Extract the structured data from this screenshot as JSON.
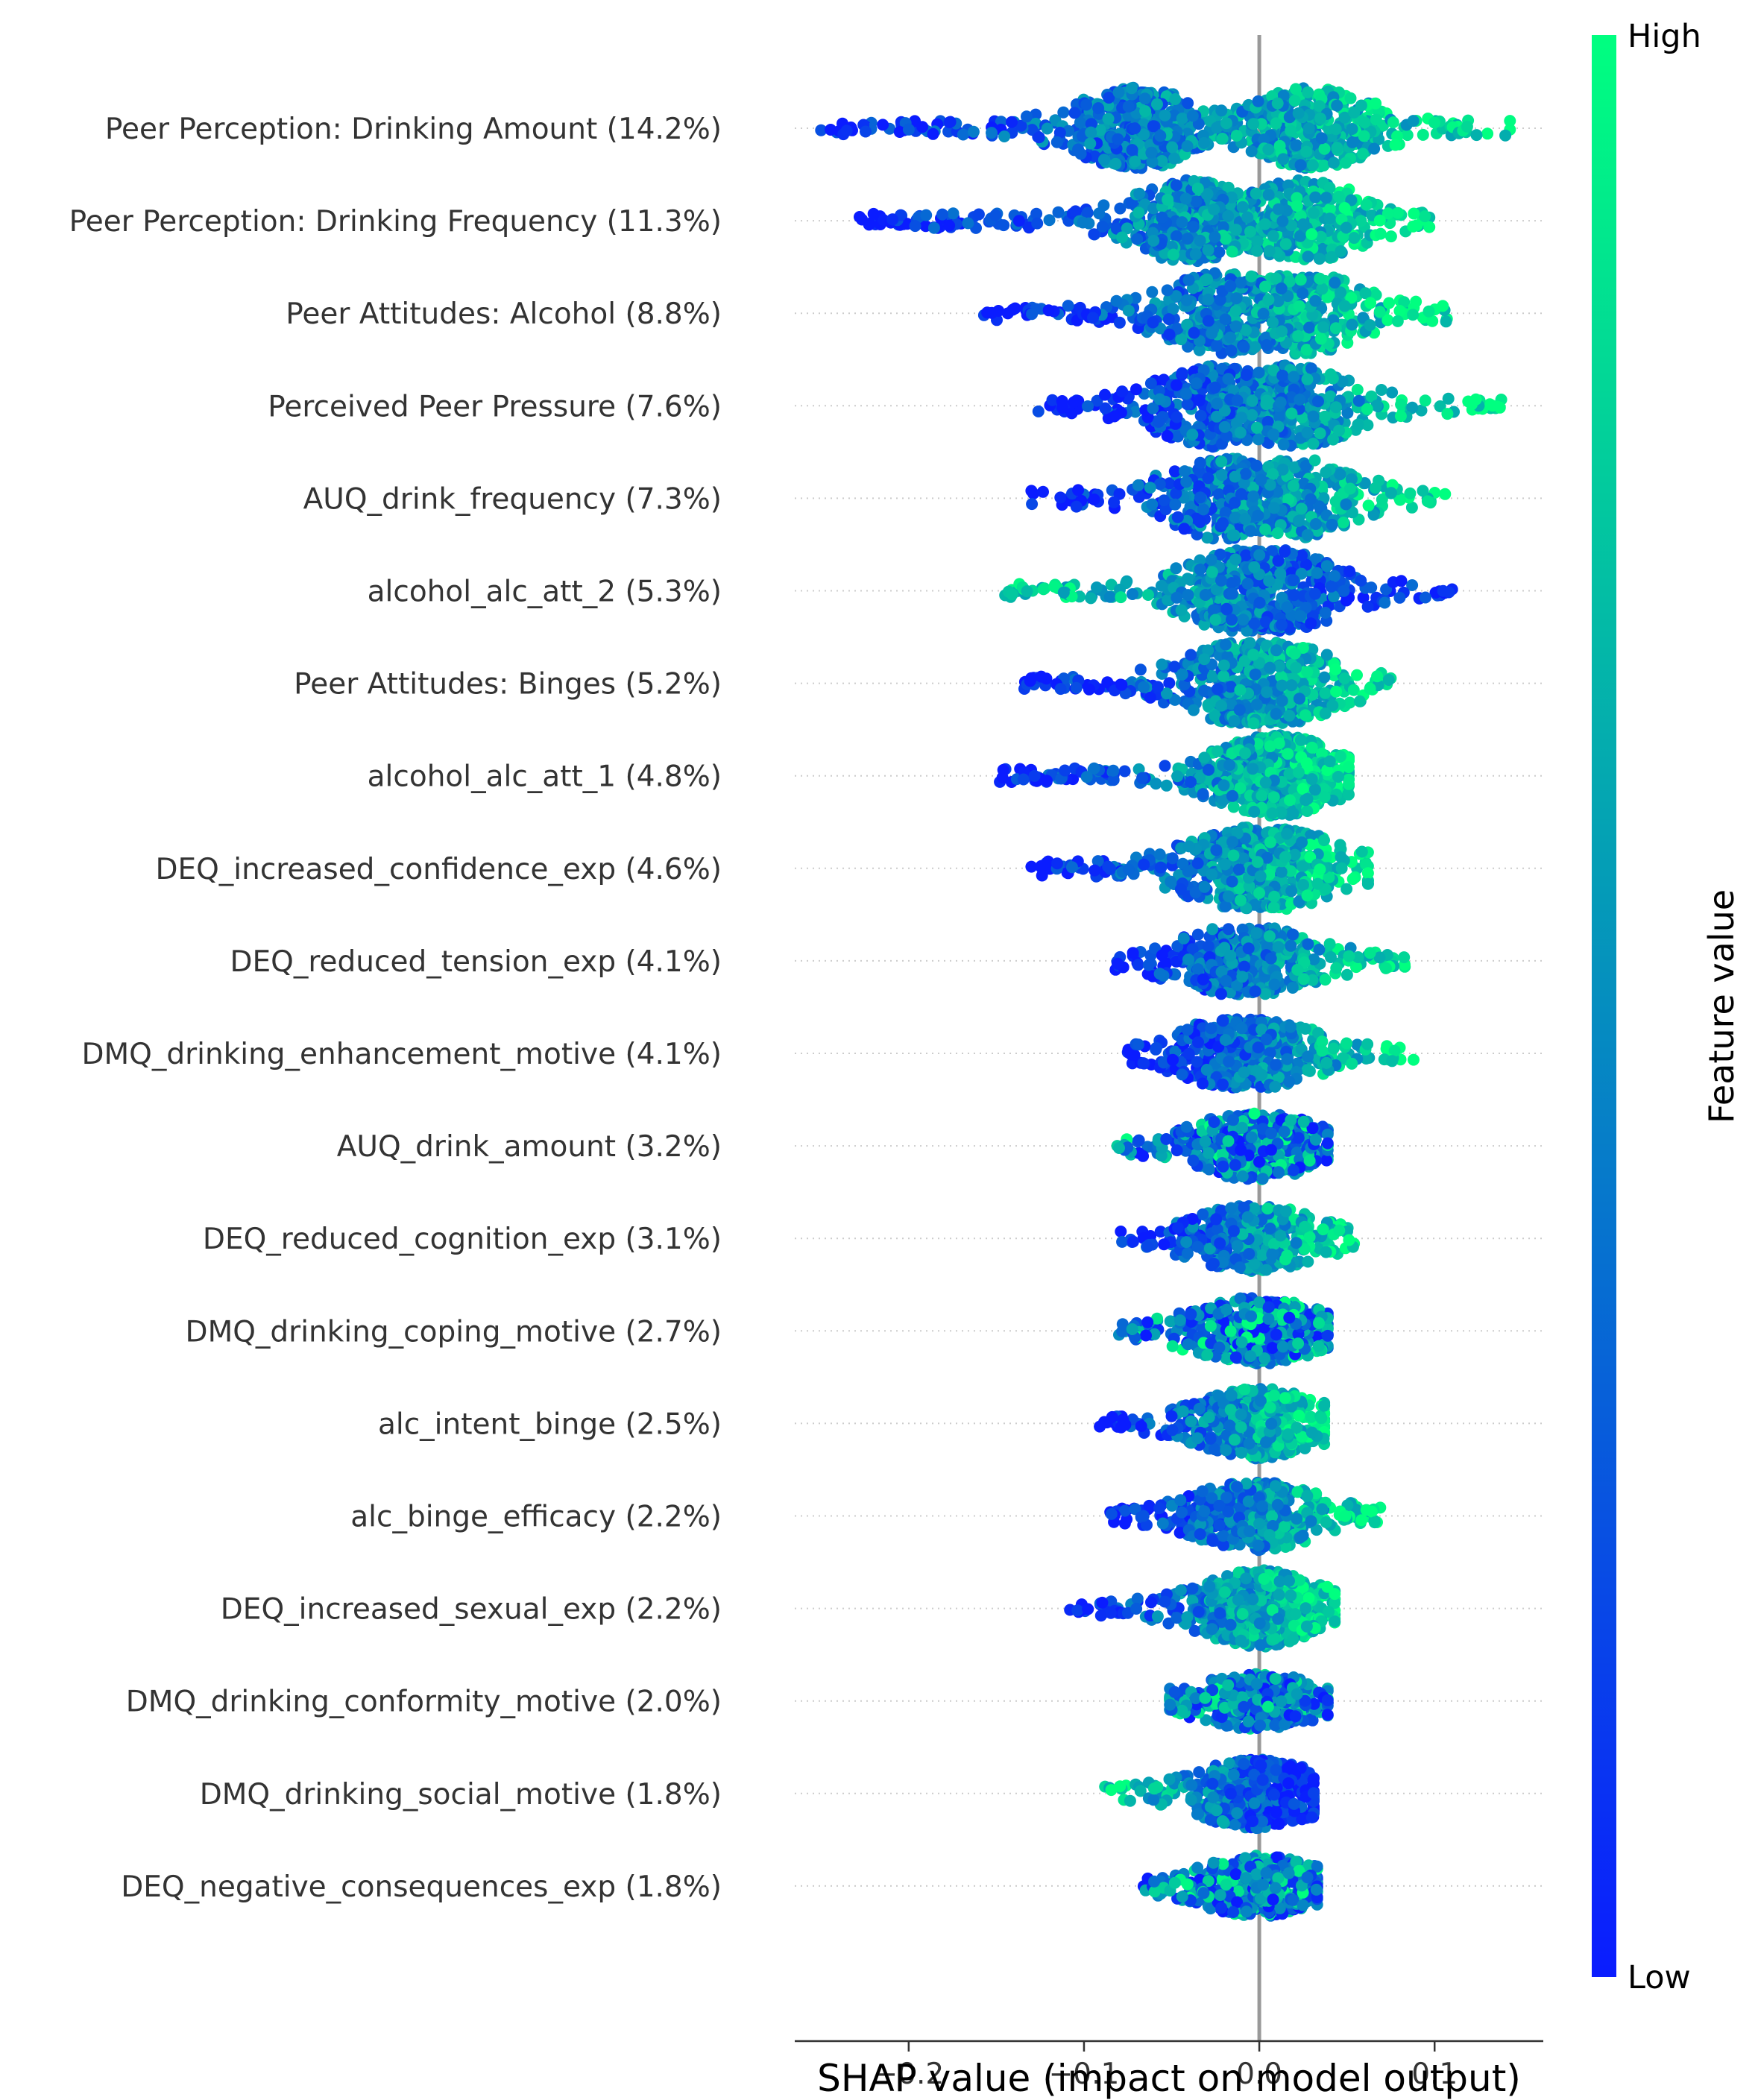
{
  "chart_data": {
    "type": "scatter",
    "subtype": "shap_beeswarm_summary",
    "xlabel": "SHAP value (impact on model output)",
    "xlim": [
      -0.265,
      0.162
    ],
    "xticks": [
      {
        "value": -0.2,
        "label": "−0.2"
      },
      {
        "value": -0.1,
        "label": "−0.1"
      },
      {
        "value": 0.0,
        "label": "0.0"
      },
      {
        "value": 0.1,
        "label": "0.1"
      }
    ],
    "zero_line": 0.0,
    "colorbar": {
      "title": "Feature value",
      "high_label": "High",
      "low_label": "Low",
      "low_color": "#0a1cff",
      "high_color": "#00ff80"
    },
    "features": [
      {
        "label": "Peer Perception: Drinking Amount (14.2%)",
        "min": -0.25,
        "max": 0.143,
        "trend": "pos",
        "mode": -0.07,
        "mode2": 0.03
      },
      {
        "label": "Peer Perception: Drinking Frequency (11.3%)",
        "min": -0.228,
        "max": 0.097,
        "trend": "pos",
        "mode": -0.04,
        "mode2": 0.025
      },
      {
        "label": "Peer Attitudes: Alcohol (8.8%)",
        "min": -0.157,
        "max": 0.107,
        "trend": "pos",
        "mode": -0.02,
        "mode2": 0.025
      },
      {
        "label": "Perceived Peer Pressure (7.6%)",
        "min": -0.126,
        "max": 0.138,
        "trend": "pos",
        "mode": -0.025,
        "mode2": 0.02
      },
      {
        "label": "AUQ_drink_frequency (7.3%)",
        "min": -0.13,
        "max": 0.106,
        "trend": "pos",
        "mode": -0.02,
        "mode2": 0.02
      },
      {
        "label": "alcohol_alc_att_2 (5.3%)",
        "min": -0.145,
        "max": 0.11,
        "trend": "neg",
        "mode": -0.01,
        "mode2": 0.01
      },
      {
        "label": "Peer Attitudes: Binges (5.2%)",
        "min": -0.134,
        "max": 0.075,
        "trend": "pos",
        "mode": -0.01,
        "mode2": 0.01
      },
      {
        "label": "alcohol_alc_att_1 (4.8%)",
        "min": -0.148,
        "max": 0.051,
        "trend": "pos",
        "mode": 0.01,
        "mode2": 0.01
      },
      {
        "label": "DEQ_increased_confidence_exp (4.6%)",
        "min": -0.13,
        "max": 0.062,
        "trend": "pos",
        "mode": -0.01,
        "mode2": 0.01
      },
      {
        "label": "DEQ_reduced_tension_exp (4.1%)",
        "min": -0.082,
        "max": 0.083,
        "trend": "pos",
        "mode": -0.015,
        "mode2": 0.0
      },
      {
        "label": "DMQ_drinking_enhancement_motive (4.1%)",
        "min": -0.075,
        "max": 0.088,
        "trend": "pos",
        "mode": -0.015,
        "mode2": 0.0
      },
      {
        "label": "AUQ_drink_amount (3.2%)",
        "min": -0.081,
        "max": 0.039,
        "trend": "mixed",
        "mode": -0.005,
        "mode2": 0.0
      },
      {
        "label": "DEQ_reduced_cognition_exp (3.1%)",
        "min": -0.079,
        "max": 0.054,
        "trend": "pos",
        "mode": -0.005,
        "mode2": 0.0
      },
      {
        "label": "DMQ_drinking_coping_motive (2.7%)",
        "min": -0.08,
        "max": 0.039,
        "trend": "mixed",
        "mode": -0.005,
        "mode2": 0.0
      },
      {
        "label": "alc_intent_binge (2.5%)",
        "min": -0.091,
        "max": 0.037,
        "trend": "pos",
        "mode": 0.0,
        "mode2": 0.0
      },
      {
        "label": "alc_binge_efficacy (2.2%)",
        "min": -0.085,
        "max": 0.069,
        "trend": "pos",
        "mode": -0.005,
        "mode2": 0.0
      },
      {
        "label": "DEQ_increased_sexual_exp (2.2%)",
        "min": -0.108,
        "max": 0.043,
        "trend": "pos",
        "mode": 0.0,
        "mode2": 0.0
      },
      {
        "label": "DMQ_drinking_conformity_motive (2.0%)",
        "min": -0.051,
        "max": 0.039,
        "trend": "mixed",
        "mode": -0.003,
        "mode2": 0.0
      },
      {
        "label": "DMQ_drinking_social_motive (1.8%)",
        "min": -0.088,
        "max": 0.031,
        "trend": "neg",
        "mode": -0.003,
        "mode2": 0.0
      },
      {
        "label": "DEQ_negative_consequences_exp (1.8%)",
        "min": -0.066,
        "max": 0.033,
        "trend": "mixed",
        "mode": 0.0,
        "mode2": 0.0
      }
    ]
  }
}
